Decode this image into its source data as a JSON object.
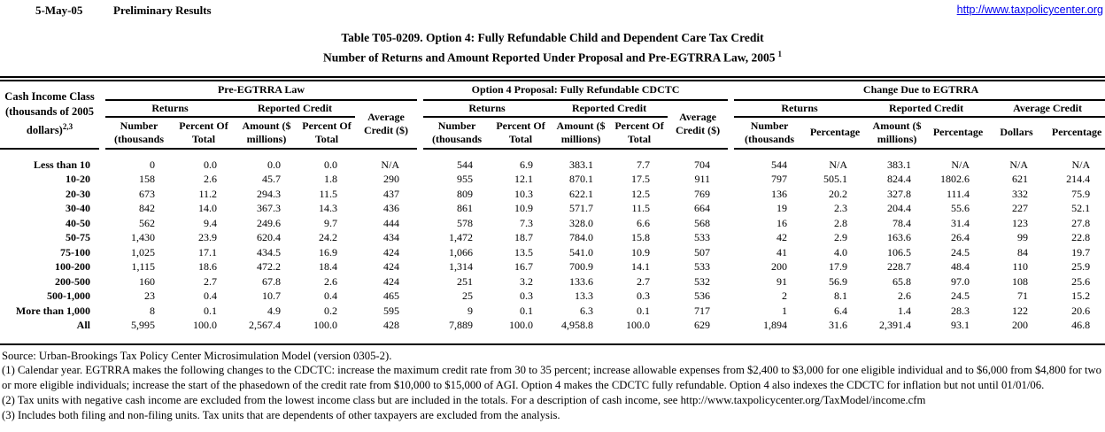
{
  "header": {
    "date": "5-May-05",
    "status": "Preliminary Results",
    "site_url": "http://www.taxpolicycenter.org"
  },
  "title": {
    "line1": "Table T05-0209. Option 4: Fully Refundable Child and Dependent Care Tax Credit",
    "line2": "Number of Returns and Amount Reported Under Proposal and Pre-EGTRRA Law, 2005",
    "line2_sup": "1"
  },
  "table": {
    "corner_label": "Cash Income Class (thousands of 2005 dollars)",
    "corner_sup": "2,3",
    "groups": {
      "group1": "Pre-EGTRRA Law",
      "group2": "Option 4 Proposal: Fully Refundable CDCTC",
      "group3": "Change Due to EGTRRA"
    },
    "subheads": {
      "returns": "Returns",
      "reported_credit": "Reported Credit",
      "avg_credit_dollars": "Average Credit ($)",
      "avg_credit": "Average Credit"
    },
    "colheads": {
      "number_thousands": "Number (thousands",
      "percent_of_total": "Percent Of Total",
      "amount_millions": "Amount ($ millions)",
      "percentage": "Percentage",
      "dollars": "Dollars"
    },
    "rows": [
      {
        "label": "Less than 10",
        "values": [
          "0",
          "0.0",
          "0.0",
          "0.0",
          "N/A",
          "544",
          "6.9",
          "383.1",
          "7.7",
          "704",
          "544",
          "N/A",
          "383.1",
          "N/A",
          "N/A",
          "N/A"
        ]
      },
      {
        "label": "10-20",
        "values": [
          "158",
          "2.6",
          "45.7",
          "1.8",
          "290",
          "955",
          "12.1",
          "870.1",
          "17.5",
          "911",
          "797",
          "505.1",
          "824.4",
          "1802.6",
          "621",
          "214.4"
        ]
      },
      {
        "label": "20-30",
        "values": [
          "673",
          "11.2",
          "294.3",
          "11.5",
          "437",
          "809",
          "10.3",
          "622.1",
          "12.5",
          "769",
          "136",
          "20.2",
          "327.8",
          "111.4",
          "332",
          "75.9"
        ]
      },
      {
        "label": "30-40",
        "values": [
          "842",
          "14.0",
          "367.3",
          "14.3",
          "436",
          "861",
          "10.9",
          "571.7",
          "11.5",
          "664",
          "19",
          "2.3",
          "204.4",
          "55.6",
          "227",
          "52.1"
        ]
      },
      {
        "label": "40-50",
        "values": [
          "562",
          "9.4",
          "249.6",
          "9.7",
          "444",
          "578",
          "7.3",
          "328.0",
          "6.6",
          "568",
          "16",
          "2.8",
          "78.4",
          "31.4",
          "123",
          "27.8"
        ]
      },
      {
        "label": "50-75",
        "values": [
          "1,430",
          "23.9",
          "620.4",
          "24.2",
          "434",
          "1,472",
          "18.7",
          "784.0",
          "15.8",
          "533",
          "42",
          "2.9",
          "163.6",
          "26.4",
          "99",
          "22.8"
        ]
      },
      {
        "label": "75-100",
        "values": [
          "1,025",
          "17.1",
          "434.5",
          "16.9",
          "424",
          "1,066",
          "13.5",
          "541.0",
          "10.9",
          "507",
          "41",
          "4.0",
          "106.5",
          "24.5",
          "84",
          "19.7"
        ]
      },
      {
        "label": "100-200",
        "values": [
          "1,115",
          "18.6",
          "472.2",
          "18.4",
          "424",
          "1,314",
          "16.7",
          "700.9",
          "14.1",
          "533",
          "200",
          "17.9",
          "228.7",
          "48.4",
          "110",
          "25.9"
        ]
      },
      {
        "label": "200-500",
        "values": [
          "160",
          "2.7",
          "67.8",
          "2.6",
          "424",
          "251",
          "3.2",
          "133.6",
          "2.7",
          "532",
          "91",
          "56.9",
          "65.8",
          "97.0",
          "108",
          "25.6"
        ]
      },
      {
        "label": "500-1,000",
        "values": [
          "23",
          "0.4",
          "10.7",
          "0.4",
          "465",
          "25",
          "0.3",
          "13.3",
          "0.3",
          "536",
          "2",
          "8.1",
          "2.6",
          "24.5",
          "71",
          "15.2"
        ]
      },
      {
        "label": "More than 1,000",
        "values": [
          "8",
          "0.1",
          "4.9",
          "0.2",
          "595",
          "9",
          "0.1",
          "6.3",
          "0.1",
          "717",
          "1",
          "6.4",
          "1.4",
          "28.3",
          "122",
          "20.6"
        ]
      },
      {
        "label": "All",
        "values": [
          "5,995",
          "100.0",
          "2,567.4",
          "100.0",
          "428",
          "7,889",
          "100.0",
          "4,958.8",
          "100.0",
          "629",
          "1,894",
          "31.6",
          "2,391.4",
          "93.1",
          "200",
          "46.8"
        ]
      }
    ]
  },
  "footnotes": {
    "source": "Source: Urban-Brookings Tax Policy Center Microsimulation Model (version 0305-2).",
    "note1": "(1) Calendar year. EGTRRA makes the following changes to the CDCTC: increase the maximum credit rate from 30 to 35 percent; increase allowable expenses from $2,400 to $3,000 for one eligible individual and to $6,000 from $4,800 for two or more eligible individuals; increase the start of the phasedown of the credit rate from $10,000 to $15,000 of AGI.  Option 4 makes the CDCTC fully refundable.  Option 4 also indexes the CDCTC for inflation but not until 01/01/06.",
    "note2": "(2) Tax units with negative cash income are excluded from the lowest income class but are included in the totals. For a description of cash income, see http://www.taxpolicycenter.org/TaxModel/income.cfm",
    "note3": "(3) Includes both filing and non-filing units.  Tax units that are dependents of other taxpayers are excluded from the analysis."
  }
}
